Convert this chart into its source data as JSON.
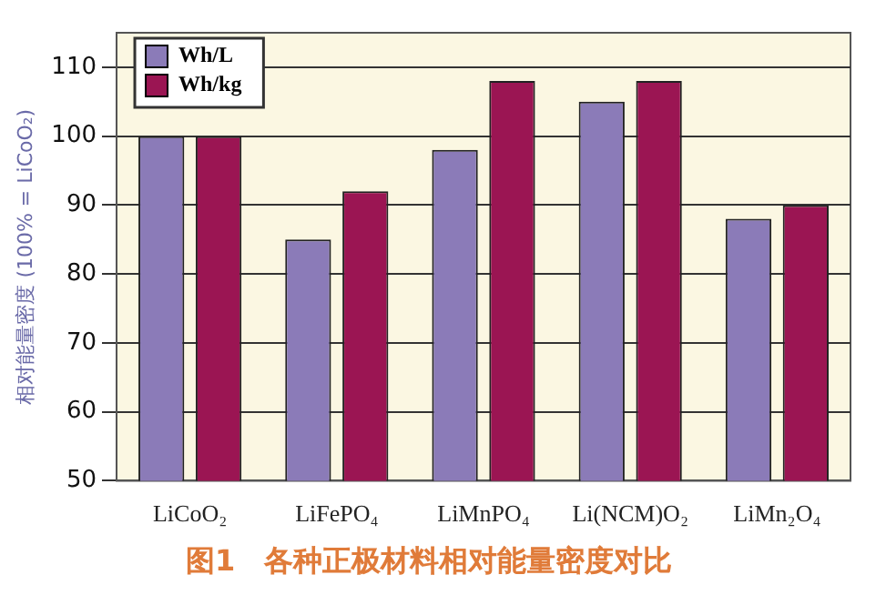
{
  "chart_data": {
    "type": "bar",
    "title": "图1　各种正极材料相对能量密度对比",
    "ylabel": "相对能量密度 (100% = LiCoO₂)",
    "categories": [
      "LiCoO₂",
      "LiFePO₄",
      "LiMnPO₄",
      "Li(NCM)O₂",
      "LiMn₂O₄"
    ],
    "series": [
      {
        "name": "Wh/L",
        "color": "#8b7bb8",
        "values": [
          100,
          85,
          98,
          105,
          88
        ]
      },
      {
        "name": "Wh/kg",
        "color": "#9b1553",
        "values": [
          100,
          92,
          108,
          108,
          90
        ]
      }
    ],
    "ylim": [
      50,
      115
    ],
    "yticks": [
      50,
      60,
      70,
      80,
      90,
      100,
      110
    ],
    "grid": "y",
    "legend": "top left"
  }
}
